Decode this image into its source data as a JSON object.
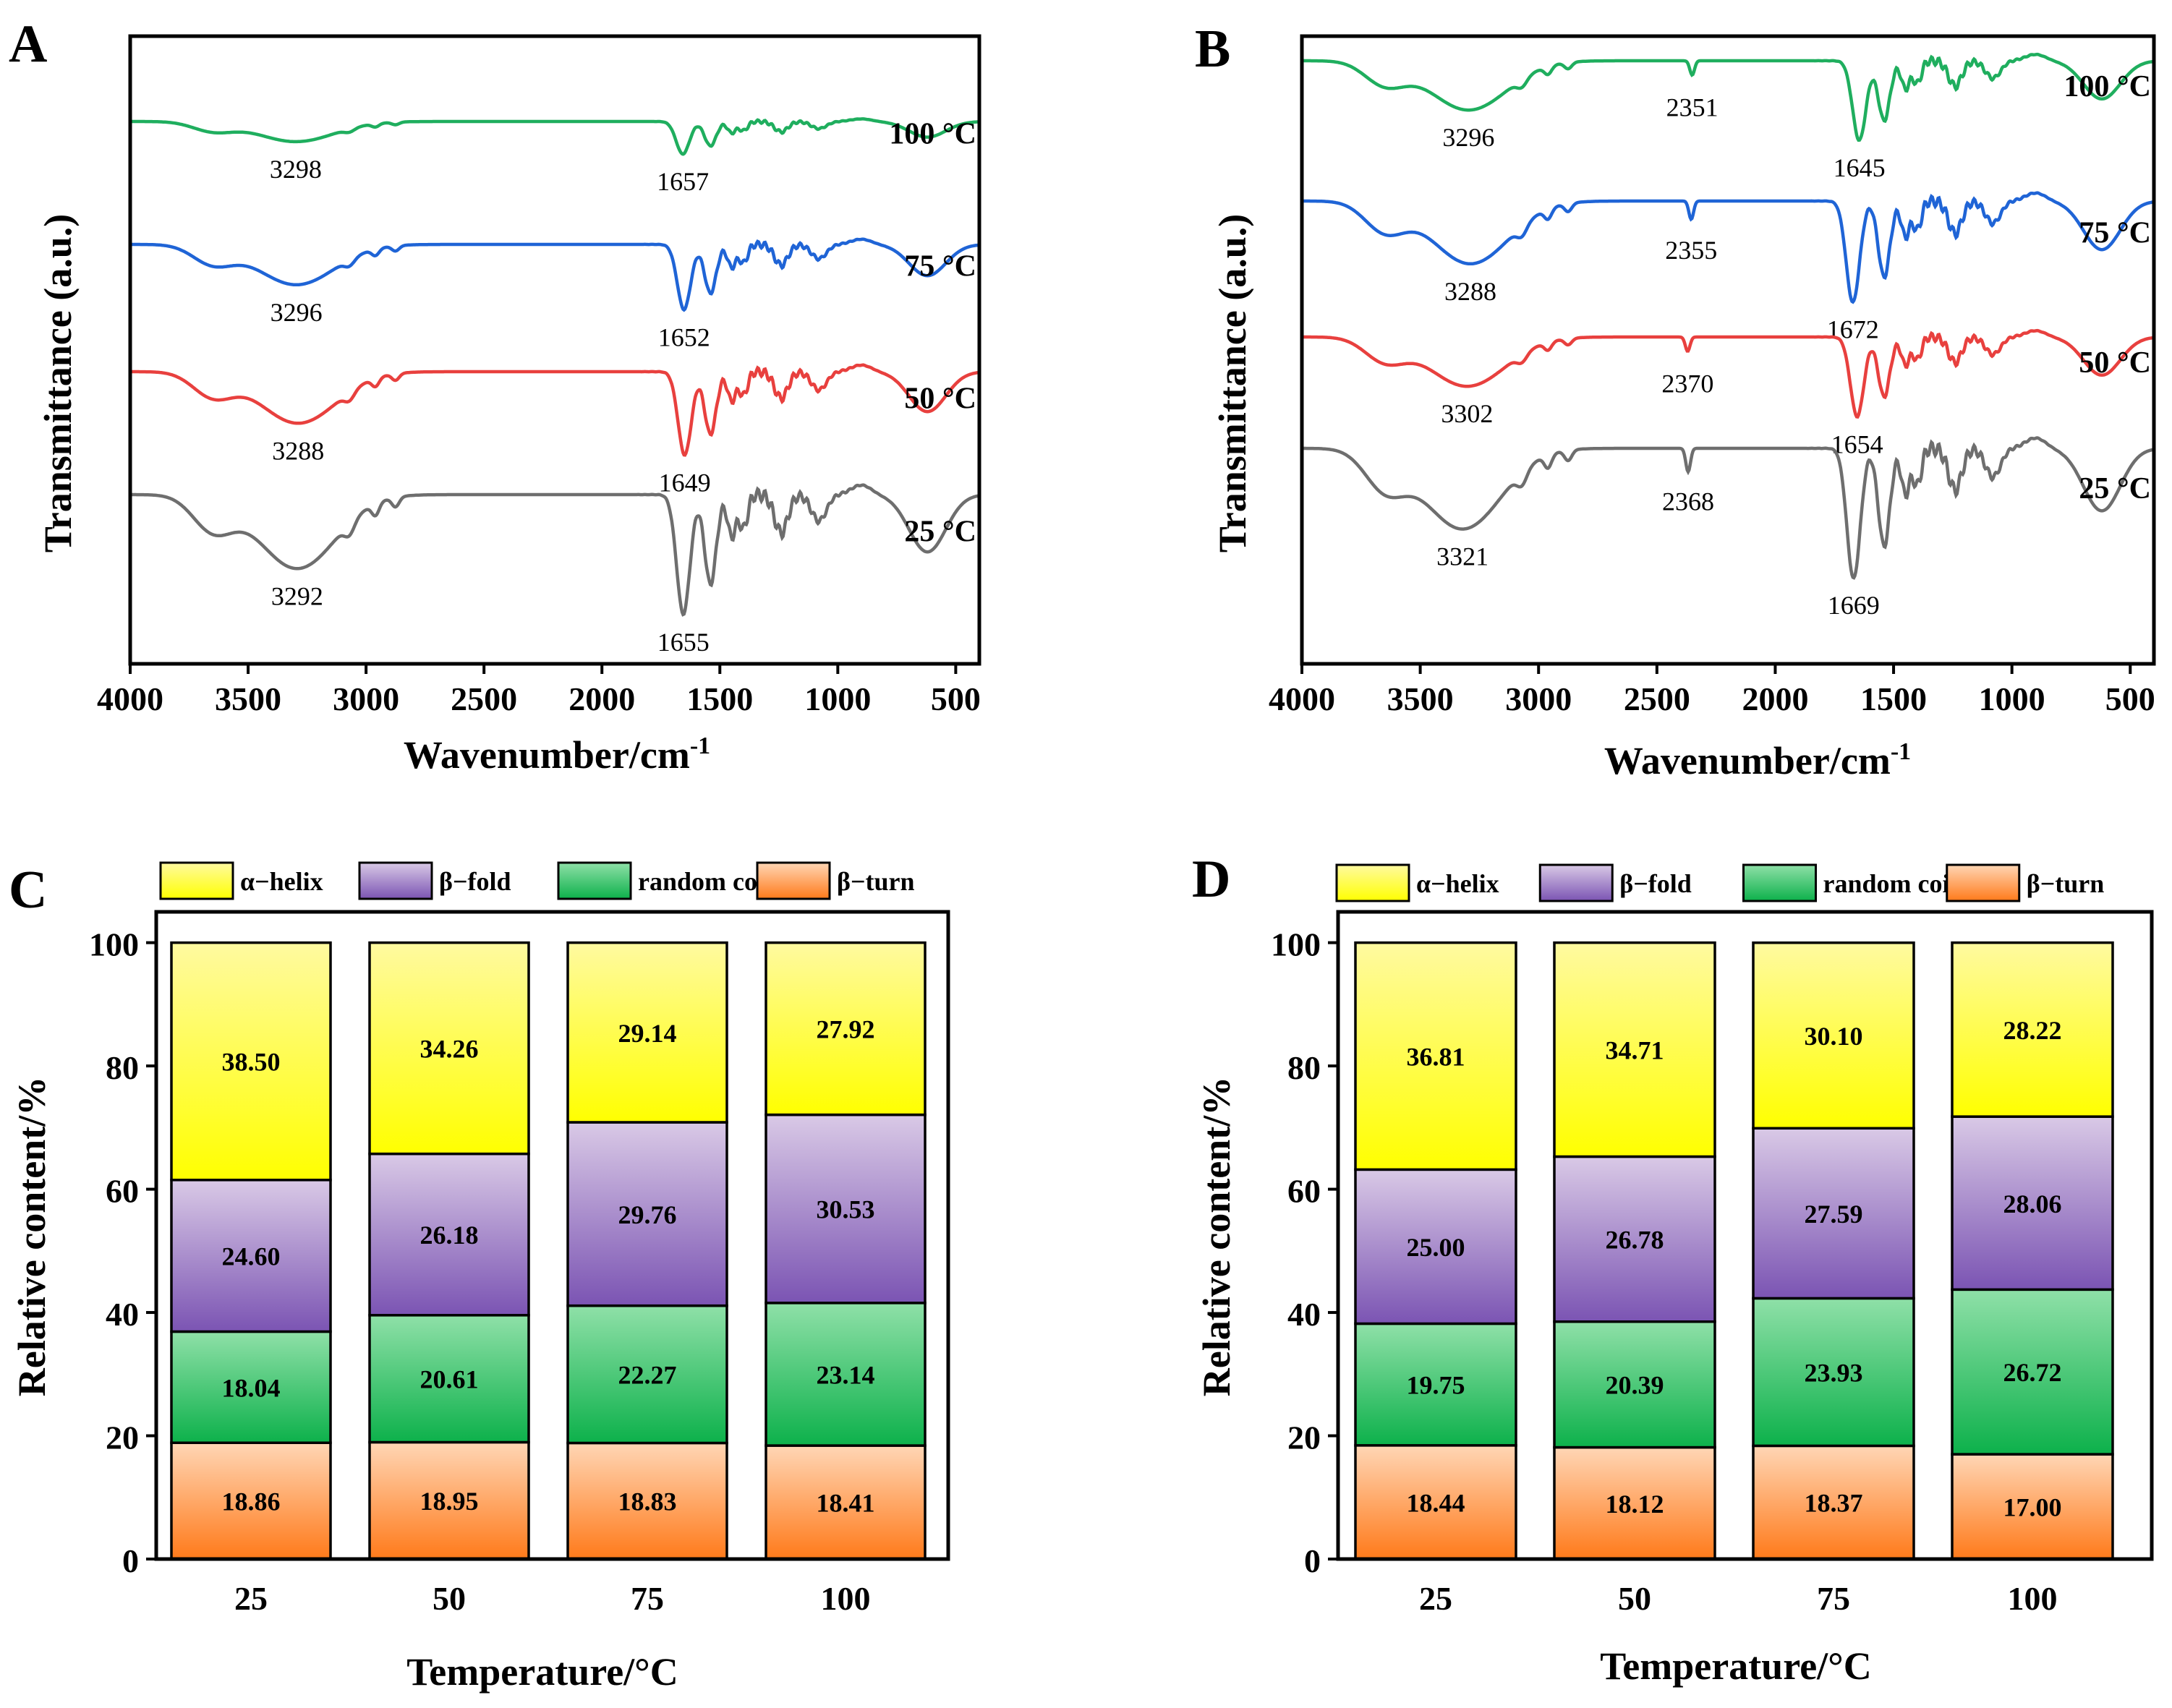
{
  "chart_data": [
    {
      "panel": "A",
      "type": "line",
      "title": "",
      "xlabel": "Wavenumber/cm",
      "xlabel_superscript": "-1",
      "ylabel": "Transmittance (a.u.)",
      "xlim": [
        4000,
        400
      ],
      "xticks": [
        4000,
        3500,
        3000,
        2500,
        2000,
        1500,
        1000,
        500
      ],
      "series": [
        {
          "name": "100 °C",
          "color": "#1fae5e",
          "peaks": [
            3298,
            1657
          ],
          "peak_labels": [
            "3298",
            "1657"
          ]
        },
        {
          "name": "75 °C",
          "color": "#1f64d6",
          "peaks": [
            3296,
            1652
          ],
          "peak_labels": [
            "3296",
            "1652"
          ]
        },
        {
          "name": "50 °C",
          "color": "#e8403e",
          "peaks": [
            3288,
            1649
          ],
          "peak_labels": [
            "3288",
            "1649"
          ]
        },
        {
          "name": "25 °C",
          "color": "#6e6e6e",
          "peaks": [
            3292,
            1655
          ],
          "peak_labels": [
            "3292",
            "1655"
          ]
        }
      ]
    },
    {
      "panel": "B",
      "type": "line",
      "title": "",
      "xlabel": "Wavenumber/cm",
      "xlabel_superscript": "-1",
      "ylabel": "Transmittance (a.u.)",
      "xlim": [
        4000,
        400
      ],
      "xticks": [
        4000,
        3500,
        3000,
        2500,
        2000,
        1500,
        1000,
        500
      ],
      "series": [
        {
          "name": "100 °C",
          "color": "#1fae5e",
          "peaks": [
            3296,
            2351,
            1645
          ],
          "peak_labels": [
            "3296",
            "2351",
            "1645"
          ]
        },
        {
          "name": "75 °C",
          "color": "#1f64d6",
          "peaks": [
            3288,
            2355,
            1672
          ],
          "peak_labels": [
            "3288",
            "2355",
            "1672"
          ]
        },
        {
          "name": "50 °C",
          "color": "#e8403e",
          "peaks": [
            3302,
            2370,
            1654
          ],
          "peak_labels": [
            "3302",
            "2370",
            "1654"
          ]
        },
        {
          "name": "25 °C",
          "color": "#6e6e6e",
          "peaks": [
            3321,
            2368,
            1669
          ],
          "peak_labels": [
            "3321",
            "2368",
            "1669"
          ]
        }
      ]
    },
    {
      "panel": "C",
      "type": "bar",
      "stacked": true,
      "xlabel": "Temperature/°C",
      "ylabel": "Relative content/%",
      "ylim": [
        0,
        105
      ],
      "yticks": [
        0,
        20,
        40,
        60,
        80,
        100
      ],
      "categories": [
        "25",
        "50",
        "75",
        "100"
      ],
      "series": [
        {
          "name": "β−turn",
          "values": [
            18.86,
            18.95,
            18.83,
            18.41
          ],
          "labels": [
            "18.86",
            "18.95",
            "18.83",
            "18.41"
          ]
        },
        {
          "name": "random coil",
          "values": [
            18.04,
            20.61,
            22.27,
            23.14
          ],
          "labels": [
            "18.04",
            "20.61",
            "22.27",
            "23.14"
          ]
        },
        {
          "name": "β−fold",
          "values": [
            24.6,
            26.18,
            29.76,
            30.53
          ],
          "labels": [
            "24.60",
            "26.18",
            "29.76",
            "30.53"
          ]
        },
        {
          "name": "α−helix",
          "values": [
            38.5,
            34.26,
            29.14,
            27.92
          ],
          "labels": [
            "38.50",
            "34.26",
            "29.14",
            "27.92"
          ]
        }
      ],
      "legend": [
        "α−helix",
        "β−fold",
        "random coil",
        "β−turn"
      ],
      "legend_position": "top"
    },
    {
      "panel": "D",
      "type": "bar",
      "stacked": true,
      "xlabel": "Temperature/°C",
      "ylabel": "Relative content/%",
      "ylim": [
        0,
        105
      ],
      "yticks": [
        0,
        20,
        40,
        60,
        80,
        100
      ],
      "categories": [
        "25",
        "50",
        "75",
        "100"
      ],
      "series": [
        {
          "name": "β−turn",
          "values": [
            18.44,
            18.12,
            18.37,
            17.0
          ],
          "labels": [
            "18.44",
            "18.12",
            "18.37",
            "17.00"
          ]
        },
        {
          "name": "random coil",
          "values": [
            19.75,
            20.39,
            23.93,
            26.72
          ],
          "labels": [
            "19.75",
            "20.39",
            "23.93",
            "26.72"
          ]
        },
        {
          "name": "β−fold",
          "values": [
            25.0,
            26.78,
            27.59,
            28.06
          ],
          "labels": [
            "25.00",
            "26.78",
            "27.59",
            "28.06"
          ]
        },
        {
          "name": "α−helix",
          "values": [
            36.81,
            34.71,
            30.1,
            28.22
          ],
          "labels": [
            "36.81",
            "34.71",
            "30.10",
            "28.22"
          ]
        }
      ],
      "legend": [
        "α−helix",
        "β−fold",
        "random coil",
        "β−turn"
      ],
      "legend_position": "top"
    }
  ],
  "colors": {
    "alpha_helix_top": "#fffaa0",
    "alpha_helix_bottom": "#ffff00",
    "beta_fold_top": "#d9c9e6",
    "beta_fold_bottom": "#7b54b3",
    "random_coil_top": "#8fe0a8",
    "random_coil_bottom": "#0db14b",
    "beta_turn_top": "#ffd6b5",
    "beta_turn_bottom": "#ff7a1a"
  }
}
